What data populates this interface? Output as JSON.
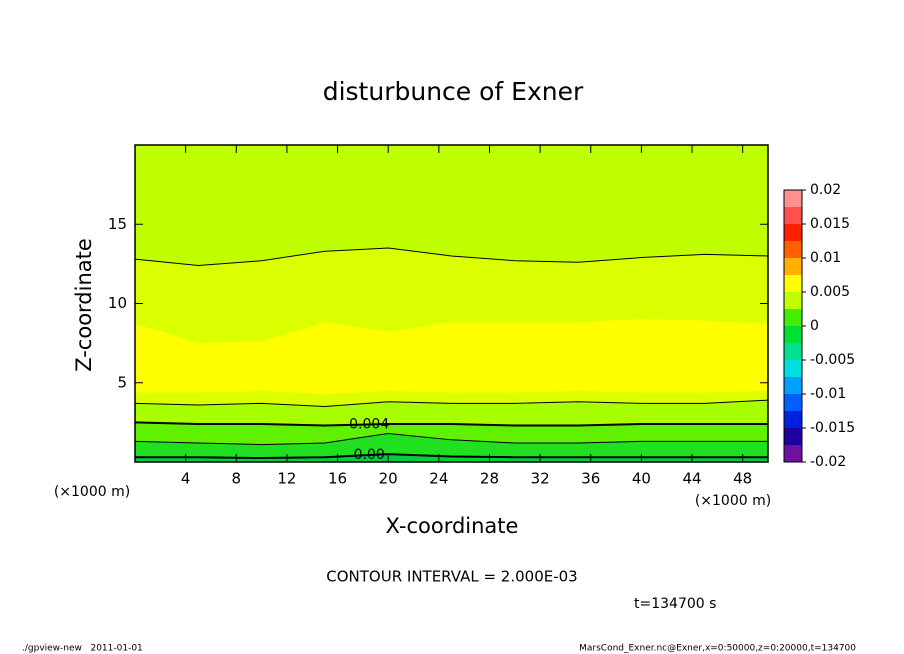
{
  "chart_data": {
    "type": "contour",
    "title": "disturbunce of Exner",
    "x_label": "X-coordinate",
    "y_label": "Z-coordinate",
    "x_unit": "(×1000 m)",
    "xlim": [
      0,
      50
    ],
    "xticks": [
      4,
      8,
      12,
      16,
      20,
      24,
      28,
      32,
      36,
      40,
      44,
      48
    ],
    "ylim": [
      0,
      20
    ],
    "yticks": [
      5,
      10,
      15
    ],
    "x": [
      0,
      5,
      10,
      15,
      20,
      25,
      30,
      35,
      40,
      45,
      50
    ],
    "shades": [
      {
        "color": "#c0ff00",
        "bottom": [
          0,
          0,
          0,
          0,
          0,
          0,
          0,
          0,
          0,
          0,
          0
        ],
        "top": [
          20,
          20,
          20,
          20,
          20,
          20,
          20,
          20,
          20,
          20,
          20
        ]
      },
      {
        "color": "#dcff00",
        "bottom": [
          3.7,
          3.6,
          3.7,
          3.5,
          3.8,
          3.7,
          3.7,
          3.8,
          3.7,
          3.7,
          3.9
        ],
        "top": [
          12.8,
          12.4,
          12.7,
          13.3,
          13.5,
          13.0,
          12.7,
          12.6,
          12.9,
          13.1,
          13.0
        ]
      },
      {
        "color": "#ffff00",
        "bottom": [
          4.4,
          4.4,
          4.5,
          4.3,
          4.5,
          4.4,
          4.4,
          4.5,
          4.4,
          4.4,
          4.5
        ],
        "top": [
          8.7,
          7.5,
          7.6,
          8.8,
          8.2,
          8.8,
          8.8,
          8.8,
          9.0,
          8.9,
          8.7
        ]
      },
      {
        "color": "#a8ff00",
        "bottom": [
          2.5,
          2.4,
          2.4,
          2.3,
          2.4,
          2.4,
          2.3,
          2.3,
          2.4,
          2.4,
          2.4
        ],
        "top": [
          3.7,
          3.6,
          3.7,
          3.5,
          3.8,
          3.7,
          3.7,
          3.8,
          3.7,
          3.7,
          3.9
        ]
      },
      {
        "color": "#60f000",
        "bottom": [
          1.3,
          1.2,
          1.1,
          1.2,
          1.8,
          1.4,
          1.2,
          1.2,
          1.3,
          1.3,
          1.3
        ],
        "top": [
          2.5,
          2.4,
          2.4,
          2.3,
          2.4,
          2.4,
          2.3,
          2.3,
          2.4,
          2.4,
          2.4
        ]
      },
      {
        "color": "#20e020",
        "bottom": [
          0.3,
          0.3,
          0.25,
          0.3,
          0.5,
          0.35,
          0.3,
          0.3,
          0.3,
          0.3,
          0.3
        ],
        "top": [
          1.3,
          1.2,
          1.1,
          1.2,
          1.8,
          1.4,
          1.2,
          1.2,
          1.3,
          1.3,
          1.3
        ]
      },
      {
        "color": "#00d040",
        "bottom": [
          0,
          0,
          0,
          0,
          0,
          0,
          0,
          0,
          0,
          0,
          0
        ],
        "top": [
          0.3,
          0.3,
          0.25,
          0.3,
          0.5,
          0.35,
          0.3,
          0.3,
          0.3,
          0.3,
          0.3
        ]
      }
    ],
    "contours": [
      {
        "level": 0,
        "level_label": "0.00",
        "values": [
          0.3,
          0.3,
          0.25,
          0.3,
          0.5,
          0.35,
          0.3,
          0.3,
          0.3,
          0.3,
          0.3
        ]
      },
      {
        "level": 0.002,
        "values": [
          1.3,
          1.2,
          1.1,
          1.2,
          1.8,
          1.4,
          1.2,
          1.2,
          1.3,
          1.3,
          1.3
        ]
      },
      {
        "level": 0.004,
        "level_label": "0.004",
        "values": [
          2.5,
          2.4,
          2.4,
          2.3,
          2.4,
          2.4,
          2.3,
          2.3,
          2.4,
          2.4,
          2.4
        ]
      },
      {
        "level": 0.006,
        "values": [
          3.7,
          3.6,
          3.7,
          3.5,
          3.8,
          3.7,
          3.7,
          3.8,
          3.7,
          3.7,
          3.9
        ]
      },
      {
        "level": 0.006,
        "values": [
          12.8,
          12.4,
          12.7,
          13.3,
          13.5,
          13.0,
          12.7,
          12.6,
          12.9,
          13.1,
          13.0
        ]
      }
    ],
    "colorbar": {
      "clim": [
        -0.02,
        0.02
      ],
      "ticks": [
        0.02,
        0.015,
        0.01,
        0.005,
        0,
        -0.005,
        -0.01,
        -0.015,
        -0.02
      ],
      "colors": [
        "#7010a0",
        "#2000a0",
        "#0020e0",
        "#0060ff",
        "#00a0ff",
        "#00e0e0",
        "#00e090",
        "#00e030",
        "#40f000",
        "#c0ff00",
        "#ffff00",
        "#ffb000",
        "#ff6000",
        "#ff2000",
        "#ff5050",
        "#ff9090"
      ]
    },
    "contour_interval": "CONTOUR INTERVAL = 2.000E-03",
    "time_label": "t=134700 s",
    "footer_left": "./gpview-new   2011-01-01",
    "footer_right": "MarsCond_Exner.nc@Exner,x=0:50000,z=0:20000,t=134700"
  }
}
